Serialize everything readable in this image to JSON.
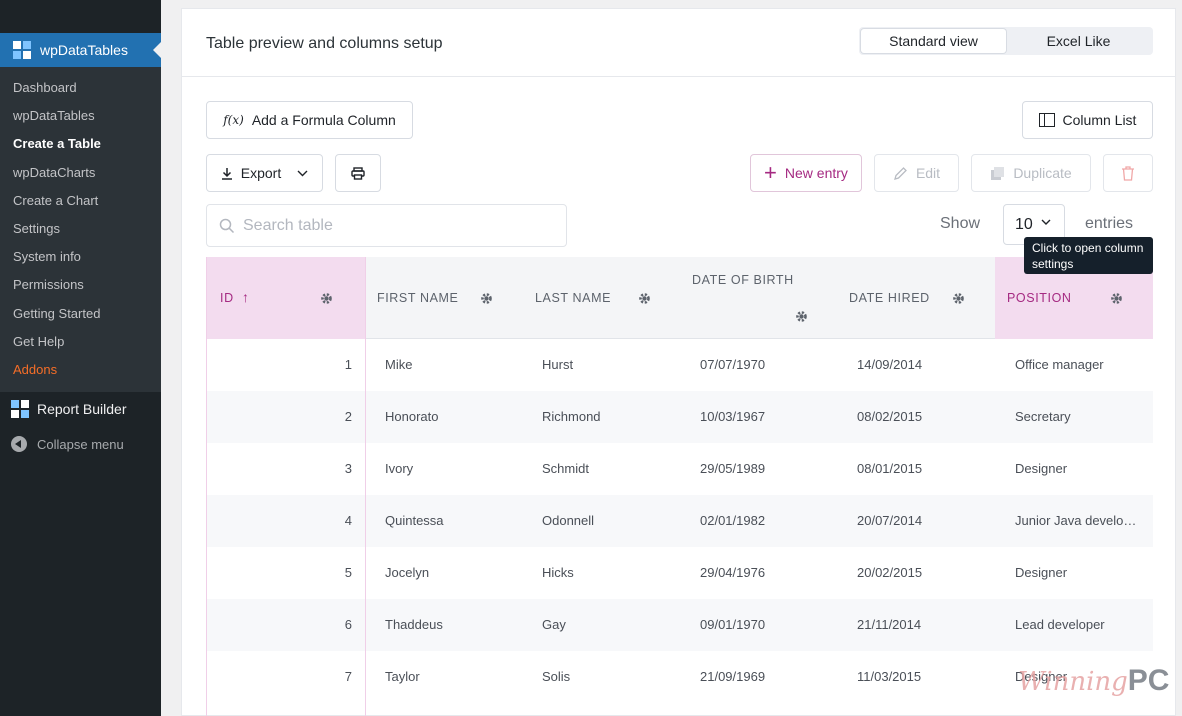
{
  "sidebar": {
    "brand": "wpDataTables",
    "items": [
      {
        "label": "Dashboard"
      },
      {
        "label": "wpDataTables"
      },
      {
        "label": "Create a Table"
      },
      {
        "label": "wpDataCharts"
      },
      {
        "label": "Create a Chart"
      },
      {
        "label": "Settings"
      },
      {
        "label": "System info"
      },
      {
        "label": "Permissions"
      },
      {
        "label": "Getting Started"
      },
      {
        "label": "Get Help"
      },
      {
        "label": "Addons"
      }
    ],
    "report_builder": "Report Builder",
    "collapse": "Collapse menu"
  },
  "header": {
    "title": "Table preview and columns setup",
    "views": [
      "Standard view",
      "Excel Like"
    ],
    "active_view": "Standard view"
  },
  "toolbar": {
    "formula": "Add a Formula Column",
    "column_list": "Column List",
    "export": "Export",
    "new_entry": "New entry",
    "edit": "Edit",
    "duplicate": "Duplicate"
  },
  "search": {
    "placeholder": "Search table"
  },
  "length": {
    "show": "Show",
    "value": "10",
    "entries": "entries"
  },
  "tooltip": "Click to open column settings",
  "table": {
    "columns": [
      "ID",
      "FIRST NAME",
      "LAST NAME",
      "DATE OF BIRTH",
      "DATE HIRED",
      "POSITION"
    ],
    "sort_indicator": "↑",
    "rows": [
      [
        "1",
        "Mike",
        "Hurst",
        "07/07/1970",
        "14/09/2014",
        "Office manager"
      ],
      [
        "2",
        "Honorato",
        "Richmond",
        "10/03/1967",
        "08/02/2015",
        "Secretary"
      ],
      [
        "3",
        "Ivory",
        "Schmidt",
        "29/05/1989",
        "08/01/2015",
        "Designer"
      ],
      [
        "4",
        "Quintessa",
        "Odonnell",
        "02/01/1982",
        "20/07/2014",
        "Junior Java developer"
      ],
      [
        "5",
        "Jocelyn",
        "Hicks",
        "29/04/1976",
        "20/02/2015",
        "Designer"
      ],
      [
        "6",
        "Thaddeus",
        "Gay",
        "09/01/1970",
        "21/11/2014",
        "Lead developer"
      ],
      [
        "7",
        "Taylor",
        "Solis",
        "21/09/1969",
        "11/03/2015",
        "Designer"
      ]
    ]
  },
  "watermark": {
    "part1": "Winning",
    "part2": "PC"
  },
  "colors": {
    "accent": "#a52a82",
    "sidebar": "#1d2327",
    "brand_bar": "#2271b1",
    "addons": "#f56e28"
  }
}
